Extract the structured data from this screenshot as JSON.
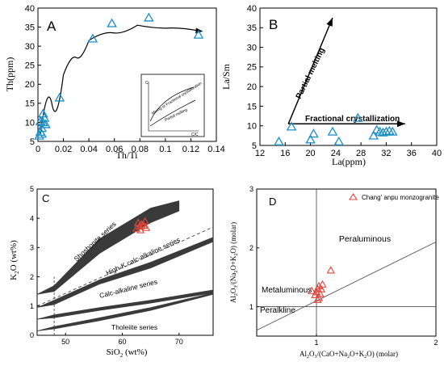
{
  "chart_data": [
    {
      "id": "A",
      "type": "scatter",
      "panel_label": "A",
      "xlabel": "Th/Ti",
      "ylabel": "Th(ppm)",
      "xlim": [
        0,
        0.14
      ],
      "ylim": [
        5,
        40
      ],
      "xticks": [
        "0",
        "0.02",
        "0.04",
        "0.06",
        "0.08",
        "0.1",
        "0.12",
        "0.14"
      ],
      "yticks": [
        "5",
        "10",
        "15",
        "20",
        "25",
        "30",
        "35",
        "40"
      ],
      "series": [
        {
          "marker": "open-triangle",
          "points": [
            [
              0.001,
              6.5
            ],
            [
              0.002,
              7.5
            ],
            [
              0.003,
              8.5
            ],
            [
              0.004,
              10.0
            ],
            [
              0.002,
              10.3
            ],
            [
              0.005,
              11.2
            ],
            [
              0.004,
              12.3
            ],
            [
              0.006,
              9.5
            ],
            [
              0.003,
              7.0
            ],
            [
              0.017,
              16.5
            ],
            [
              0.043,
              32.0
            ],
            [
              0.058,
              36.0
            ],
            [
              0.087,
              37.5
            ],
            [
              0.126,
              33.0
            ]
          ]
        }
      ],
      "trend": [
        [
          0.002,
          7.0
        ],
        [
          0.02,
          22.5
        ],
        [
          0.04,
          31.5
        ],
        [
          0.078,
          35.5
        ],
        [
          0.127,
          34.0
        ]
      ],
      "inset_labels": [
        "Mixing or Fractional crystallization",
        "Partial melting"
      ],
      "inset_axis_labels": [
        "C",
        "C/C"
      ]
    },
    {
      "id": "B",
      "type": "scatter",
      "panel_label": "B",
      "xlabel": "La(ppm)",
      "ylabel": "La/Sm",
      "xlim": [
        12,
        40
      ],
      "ylim": [
        5,
        40
      ],
      "xticks": [
        "12",
        "16",
        "20",
        "24",
        "28",
        "32",
        "36",
        "40"
      ],
      "yticks": [
        "5",
        "10",
        "15",
        "20",
        "25",
        "30",
        "35",
        "40"
      ],
      "series": [
        {
          "marker": "open-triangle",
          "points": [
            [
              15.0,
              6.0
            ],
            [
              17.0,
              9.8
            ],
            [
              20.0,
              6.5
            ],
            [
              20.5,
              8.0
            ],
            [
              23.5,
              8.5
            ],
            [
              24.5,
              6.0
            ],
            [
              27.5,
              12.0
            ],
            [
              30.0,
              7.5
            ],
            [
              30.5,
              9.0
            ],
            [
              31.0,
              8.5
            ],
            [
              31.5,
              8.3
            ],
            [
              32.0,
              8.5
            ],
            [
              32.5,
              8.7
            ],
            [
              33.0,
              8.5
            ]
          ]
        }
      ],
      "arrows": [
        {
          "label": "Partial melting",
          "from": [
            16.5,
            10.5
          ],
          "to": [
            23.5,
            37.5
          ]
        },
        {
          "label": "Fractional crystallization",
          "from": [
            16.5,
            10.5
          ],
          "to": [
            35.0,
            10.5
          ]
        }
      ]
    },
    {
      "id": "C",
      "type": "scatter",
      "panel_label": "C",
      "xlabel": "SiO2 (wt%)",
      "ylabel": "K2O (wt%)",
      "xlim": [
        45,
        76
      ],
      "ylim": [
        0,
        5
      ],
      "xticks": [
        "50",
        "60",
        "70"
      ],
      "yticks": [
        "0",
        "1",
        "2",
        "3",
        "4",
        "5"
      ],
      "series_labels": [
        "Shoshonite series",
        "High-K calc-alkaline series",
        "Calc-alkaline series",
        "Tholeiite series"
      ],
      "series": [
        {
          "marker": "open-triangle",
          "points": [
            [
              62.5,
              3.65
            ],
            [
              63.0,
              3.72
            ],
            [
              63.4,
              3.8
            ],
            [
              62.8,
              3.85
            ],
            [
              63.8,
              3.75
            ],
            [
              64.0,
              3.9
            ],
            [
              63.2,
              3.6
            ],
            [
              64.2,
              3.68
            ]
          ]
        }
      ],
      "boundary_bands": [
        [
          [
            45,
            1.4
          ],
          [
            48,
            1.7
          ],
          [
            56,
            3.3
          ],
          [
            65,
            4.35
          ],
          [
            70,
            4.6
          ]
        ],
        [
          [
            45,
            1.4
          ],
          [
            48,
            1.5
          ],
          [
            56,
            2.8
          ],
          [
            65,
            3.85
          ],
          [
            70,
            4.25
          ]
        ],
        [
          [
            45,
            0.95
          ],
          [
            48,
            1.2
          ],
          [
            56,
            1.9
          ],
          [
            65,
            2.5
          ],
          [
            76,
            3.35
          ]
        ],
        [
          [
            45,
            0.95
          ],
          [
            48,
            1.05
          ],
          [
            56,
            1.75
          ],
          [
            65,
            2.3
          ],
          [
            76,
            3.2
          ]
        ],
        [
          [
            45,
            0.55
          ],
          [
            48,
            0.7
          ],
          [
            56,
            0.95
          ],
          [
            65,
            1.2
          ],
          [
            76,
            1.55
          ]
        ],
        [
          [
            45,
            0.55
          ],
          [
            48,
            0.6
          ],
          [
            56,
            0.85
          ],
          [
            65,
            1.1
          ],
          [
            76,
            1.45
          ]
        ],
        [
          [
            45,
            0.15
          ],
          [
            48,
            0.3
          ],
          [
            56,
            0.6
          ],
          [
            65,
            0.95
          ],
          [
            76,
            1.45
          ]
        ],
        [
          [
            45,
            0.15
          ],
          [
            48,
            0.22
          ],
          [
            56,
            0.5
          ],
          [
            65,
            0.85
          ],
          [
            76,
            1.4
          ]
        ]
      ],
      "dashed_lines": [
        [
          [
            48,
            0
          ],
          [
            48,
            2.0
          ]
        ],
        [
          [
            45,
            1.0
          ],
          [
            76,
            3.7
          ]
        ]
      ]
    },
    {
      "id": "D",
      "type": "scatter",
      "panel_label": "D",
      "xlabel": "Al2O3/(CaO+Na2O+K2O) (molar)",
      "ylabel": "Al2O3/(Na2O+K2O) (molar)",
      "xlim": [
        0.5,
        2
      ],
      "ylim": [
        0.5,
        3
      ],
      "xticks": [
        "1",
        "2"
      ],
      "yticks": [
        "1",
        "2",
        "3"
      ],
      "legend": "Chang' anpu monzogranite",
      "field_labels": [
        "Peraluminous",
        "Metaluminous",
        "Peralkline"
      ],
      "series": [
        {
          "name": "Chang' anpu monzogranite",
          "marker": "open-triangle",
          "points": [
            [
              0.96,
              1.27
            ],
            [
              0.99,
              1.2
            ],
            [
              1.0,
              1.25
            ],
            [
              1.01,
              1.3
            ],
            [
              1.02,
              1.35
            ],
            [
              1.03,
              1.22
            ],
            [
              1.04,
              1.3
            ],
            [
              1.05,
              1.38
            ],
            [
              1.02,
              1.15
            ],
            [
              1.01,
              1.12
            ],
            [
              1.12,
              1.62
            ]
          ]
        }
      ],
      "lines": [
        [
          [
            1,
            0.5
          ],
          [
            1,
            3
          ]
        ],
        [
          [
            0.5,
            1
          ],
          [
            2,
            1
          ]
        ],
        [
          [
            0.5,
            0.6
          ],
          [
            2,
            2.1
          ]
        ]
      ]
    }
  ]
}
